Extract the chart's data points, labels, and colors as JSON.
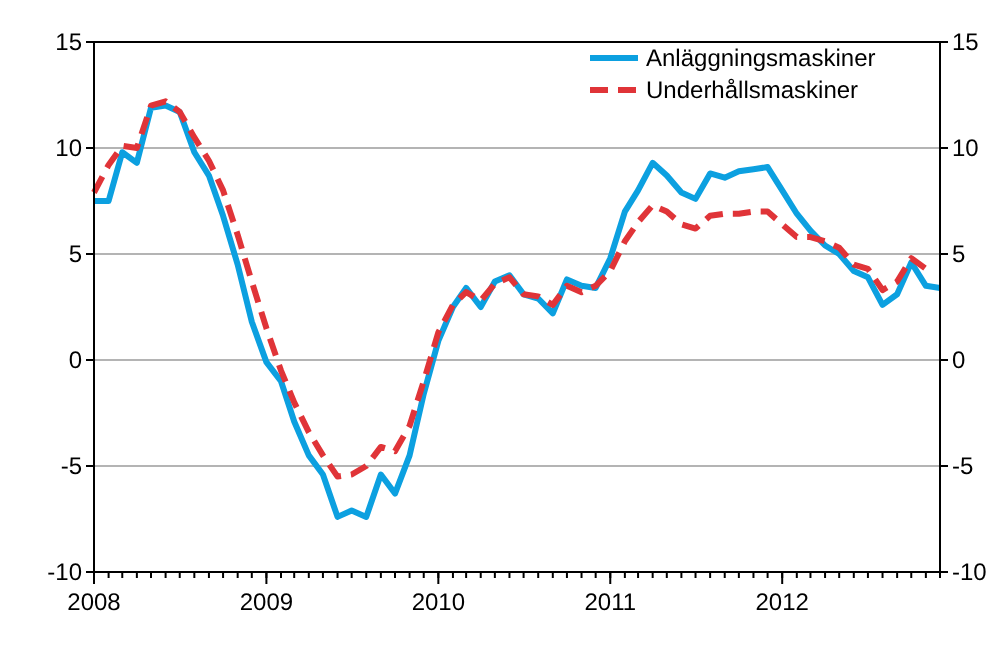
{
  "chart_data": {
    "type": "line",
    "x": [
      "2008-01",
      "2008-02",
      "2008-03",
      "2008-04",
      "2008-05",
      "2008-06",
      "2008-07",
      "2008-08",
      "2008-09",
      "2008-10",
      "2008-11",
      "2008-12",
      "2009-01",
      "2009-02",
      "2009-03",
      "2009-04",
      "2009-05",
      "2009-06",
      "2009-07",
      "2009-08",
      "2009-09",
      "2009-10",
      "2009-11",
      "2009-12",
      "2010-01",
      "2010-02",
      "2010-03",
      "2010-04",
      "2010-05",
      "2010-06",
      "2010-07",
      "2010-08",
      "2010-09",
      "2010-10",
      "2010-11",
      "2010-12",
      "2011-01",
      "2011-02",
      "2011-03",
      "2011-04",
      "2011-05",
      "2011-06",
      "2011-07",
      "2011-08",
      "2011-09",
      "2011-10",
      "2011-11",
      "2011-12",
      "2012-01",
      "2012-02",
      "2012-03",
      "2012-04",
      "2012-05",
      "2012-06",
      "2012-07",
      "2012-08",
      "2012-09",
      "2012-10",
      "2012-11",
      "2012-12"
    ],
    "series": [
      {
        "name": "Anläggningsmaskiner",
        "color": "#0ca0e0",
        "line_style": "solid",
        "values": [
          7.5,
          7.5,
          9.8,
          9.3,
          11.9,
          12.0,
          11.7,
          9.8,
          8.7,
          6.8,
          4.5,
          1.8,
          -0.1,
          -1.0,
          -2.9,
          -4.5,
          -5.4,
          -7.4,
          -7.1,
          -7.4,
          -5.4,
          -6.3,
          -4.5,
          -1.6,
          0.9,
          2.5,
          3.4,
          2.5,
          3.7,
          4.0,
          3.1,
          2.9,
          2.2,
          3.8,
          3.5,
          3.4,
          4.8,
          7.0,
          8.0,
          9.3,
          8.7,
          7.9,
          7.6,
          8.8,
          8.6,
          8.9,
          9.0,
          9.1,
          8.0,
          6.9,
          6.1,
          5.4,
          5.0,
          4.2,
          3.9,
          2.6,
          3.1,
          4.6,
          3.5,
          3.4
        ]
      },
      {
        "name": "Underhållsmaskiner",
        "color": "#e03438",
        "line_style": "dashed",
        "values": [
          7.9,
          9.2,
          10.1,
          10.0,
          12.0,
          12.2,
          11.7,
          10.5,
          9.4,
          8.0,
          5.9,
          3.7,
          1.5,
          -0.5,
          -2.0,
          -3.4,
          -4.5,
          -5.5,
          -5.4,
          -5.0,
          -4.1,
          -4.3,
          -3.1,
          -1.0,
          1.3,
          2.6,
          3.2,
          2.8,
          3.6,
          3.9,
          3.1,
          3.0,
          2.6,
          3.5,
          3.2,
          3.5,
          4.2,
          5.6,
          6.5,
          7.3,
          7.0,
          6.4,
          6.2,
          6.8,
          6.9,
          6.9,
          7.0,
          7.0,
          6.4,
          5.8,
          5.8,
          5.6,
          5.3,
          4.5,
          4.3,
          3.3,
          3.7,
          4.8,
          4.3,
          null
        ]
      }
    ],
    "xlim": [
      "2008-01",
      "2012-12"
    ],
    "xticks": [
      "2008",
      "2009",
      "2010",
      "2011",
      "2012"
    ],
    "ylim": [
      -10,
      15
    ],
    "yticks": [
      -10,
      -5,
      0,
      5,
      10,
      15
    ],
    "y2lim": [
      -10,
      15
    ],
    "y2ticks": [
      -10,
      -5,
      0,
      5,
      10,
      15
    ],
    "grid": "y",
    "legend": "top right",
    "marker": "none"
  }
}
